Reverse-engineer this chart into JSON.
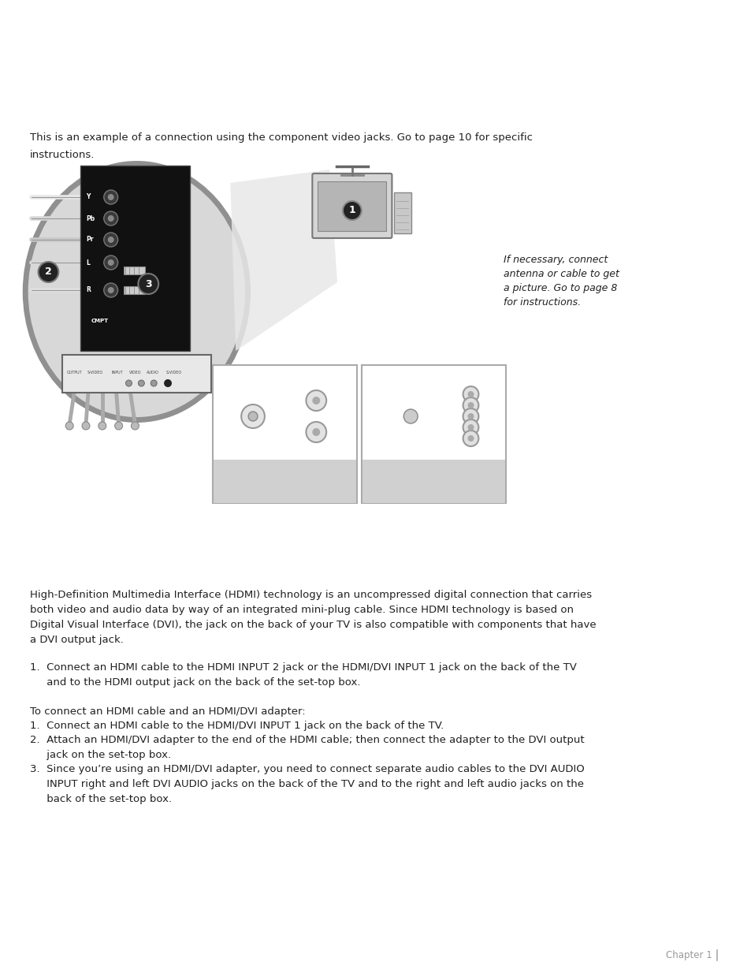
{
  "bg_color": "#ffffff",
  "text_color": "#231f20",
  "gray_color": "#808080",
  "intro_line1": "This is an example of a connection using the component video jacks. Go to page 10 for specific",
  "intro_line2": "instructions.",
  "side_note_line1": "If necessary, connect",
  "side_note_line2": "antenna or cable to get",
  "side_note_line3": "a picture. Go to page 8",
  "side_note_line4": "for instructions.",
  "hdmi_line1": "High-Definition Multimedia Interface (HDMI) technology is an uncompressed digital connection that carries",
  "hdmi_line2": "both video and audio data by way of an integrated mini-plug cable. Since HDMI technology is based on",
  "hdmi_line3": "Digital Visual Interface (DVI), the jack on the back of your TV is also compatible with components that have",
  "hdmi_line4": "a DVI output jack.",
  "step1a": "1.  Connect an HDMI cable to the HDMI INPUT 2 jack or the HDMI/DVI INPUT 1 jack on the back of the TV",
  "step1b": "     and to the HDMI output jack on the back of the set-top box.",
  "to_connect": "To connect an HDMI cable and an HDMI/DVI adapter:",
  "list1": "1.  Connect an HDMI cable to the HDMI/DVI INPUT 1 jack on the back of the TV.",
  "list2a": "2.  Attach an HDMI/DVI adapter to the end of the HDMI cable; then connect the adapter to the DVI output",
  "list2b": "     jack on the set-top box.",
  "list3a": "3.  Since you’re using an HDMI/DVI adapter, you need to connect separate audio cables to the DVI AUDIO",
  "list3b": "     INPUT right and left DVI AUDIO jacks on the back of the TV and to the right and left audio jacks on the",
  "list3c": "     back of the set-top box.",
  "chapter": "Chapter 1",
  "fs_body": 9.5,
  "fs_note": 9.0,
  "fs_small": 8.5
}
